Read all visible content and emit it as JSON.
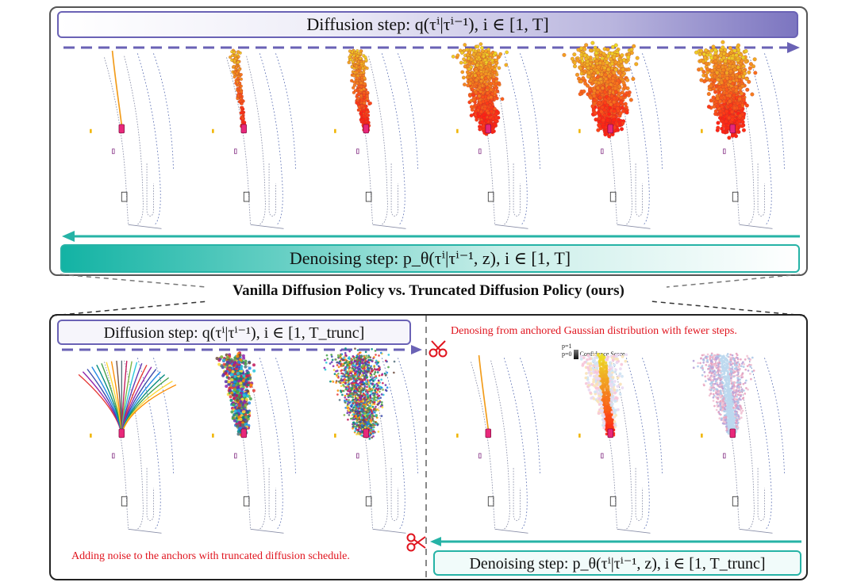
{
  "top": {
    "diffusion_label": "Diffusion step: q(τⁱ|τⁱ⁻¹), i ∈ [1, T]",
    "denoising_label": "Denoising step: p_θ(τⁱ|τⁱ⁻¹, z), i ∈ [1, T]"
  },
  "comparison_title": "Vanilla Diffusion Policy vs. Truncated Diffusion Policy (ours)",
  "bottom": {
    "diffusion_label": "Diffusion step: q(τⁱ|τⁱ⁻¹), i ∈ [1, T_trunc]",
    "denoising_label": "Denoising step: p_θ(τⁱ|τⁱ⁻¹, z), i ∈ [1, T_trunc]",
    "denoise_note": "Denosing from anchored Gaussian distribution with fewer steps.",
    "noise_note": "Adding noise to the anchors with truncated diffusion schedule.",
    "confidence_label": "Confidence Score",
    "p1": "p=1",
    "p0": "p=0"
  },
  "colors": {
    "diffusion_accent": "#6a62b5",
    "denoising_accent": "#26b3a6",
    "note_red": "#e0141e"
  },
  "icons": [
    "scissors-icon"
  ]
}
